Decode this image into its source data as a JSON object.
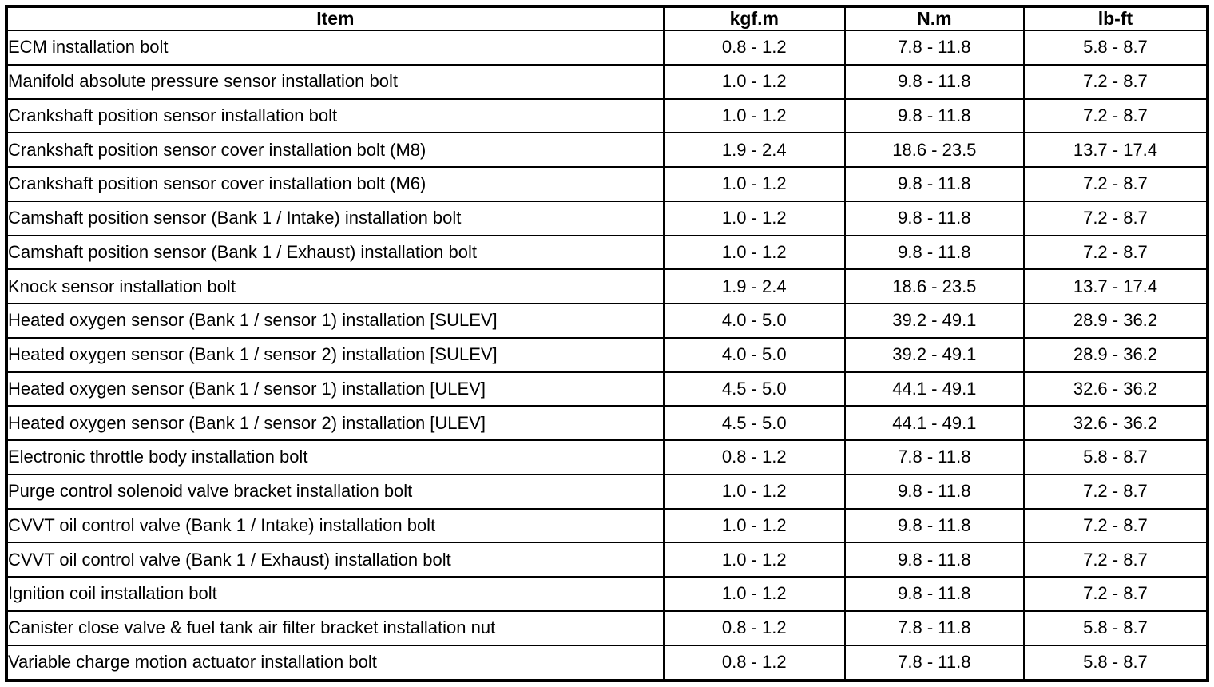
{
  "table": {
    "columns": [
      "Item",
      "kgf.m",
      "N.m",
      "lb-ft"
    ],
    "rows": [
      [
        "ECM installation bolt",
        "0.8 - 1.2",
        "7.8 - 11.8",
        "5.8 - 8.7"
      ],
      [
        "Manifold absolute pressure sensor installation bolt",
        "1.0 - 1.2",
        "9.8 - 11.8",
        "7.2 - 8.7"
      ],
      [
        "Crankshaft position sensor installation bolt",
        "1.0 - 1.2",
        "9.8 - 11.8",
        "7.2 - 8.7"
      ],
      [
        "Crankshaft position sensor cover installation bolt (M8)",
        "1.9 - 2.4",
        "18.6 - 23.5",
        "13.7 - 17.4"
      ],
      [
        "Crankshaft position sensor cover installation bolt (M6)",
        "1.0 - 1.2",
        "9.8 - 11.8",
        "7.2 - 8.7"
      ],
      [
        "Camshaft position sensor (Bank 1 / Intake) installation bolt",
        "1.0 - 1.2",
        "9.8 - 11.8",
        "7.2 - 8.7"
      ],
      [
        "Camshaft position sensor (Bank 1 / Exhaust) installation bolt",
        "1.0 - 1.2",
        "9.8 - 11.8",
        "7.2 - 8.7"
      ],
      [
        "Knock sensor installation bolt",
        "1.9 - 2.4",
        "18.6 - 23.5",
        "13.7 - 17.4"
      ],
      [
        "Heated oxygen sensor (Bank 1 / sensor 1) installation [SULEV]",
        "4.0 - 5.0",
        "39.2 - 49.1",
        "28.9 - 36.2"
      ],
      [
        "Heated oxygen sensor (Bank 1 / sensor 2) installation [SULEV]",
        "4.0 - 5.0",
        "39.2 - 49.1",
        "28.9 - 36.2"
      ],
      [
        "Heated oxygen sensor (Bank 1 / sensor 1) installation [ULEV]",
        "4.5 - 5.0",
        "44.1 - 49.1",
        "32.6 - 36.2"
      ],
      [
        "Heated oxygen sensor (Bank 1 / sensor 2) installation [ULEV]",
        "4.5 - 5.0",
        "44.1 - 49.1",
        "32.6 - 36.2"
      ],
      [
        "Electronic throttle body installation bolt",
        "0.8 - 1.2",
        "7.8 - 11.8",
        "5.8 - 8.7"
      ],
      [
        "Purge control solenoid valve bracket installation bolt",
        "1.0 - 1.2",
        "9.8 - 11.8",
        "7.2 - 8.7"
      ],
      [
        "CVVT oil control valve (Bank 1 / Intake) installation bolt",
        "1.0 - 1.2",
        "9.8 - 11.8",
        "7.2 - 8.7"
      ],
      [
        "CVVT oil control valve (Bank 1 / Exhaust) installation bolt",
        "1.0 - 1.2",
        "9.8 - 11.8",
        "7.2 - 8.7"
      ],
      [
        "Ignition coil installation bolt",
        "1.0 - 1.2",
        "9.8 - 11.8",
        "7.2 - 8.7"
      ],
      [
        "Canister close valve & fuel tank air filter bracket installation nut",
        "0.8 - 1.2",
        "7.8 - 11.8",
        "5.8 - 8.7"
      ],
      [
        "Variable charge motion actuator installation bolt",
        "0.8 - 1.2",
        "7.8 - 11.8",
        "5.8 - 8.7"
      ]
    ],
    "border_color": "#000000",
    "background_color": "#ffffff"
  }
}
